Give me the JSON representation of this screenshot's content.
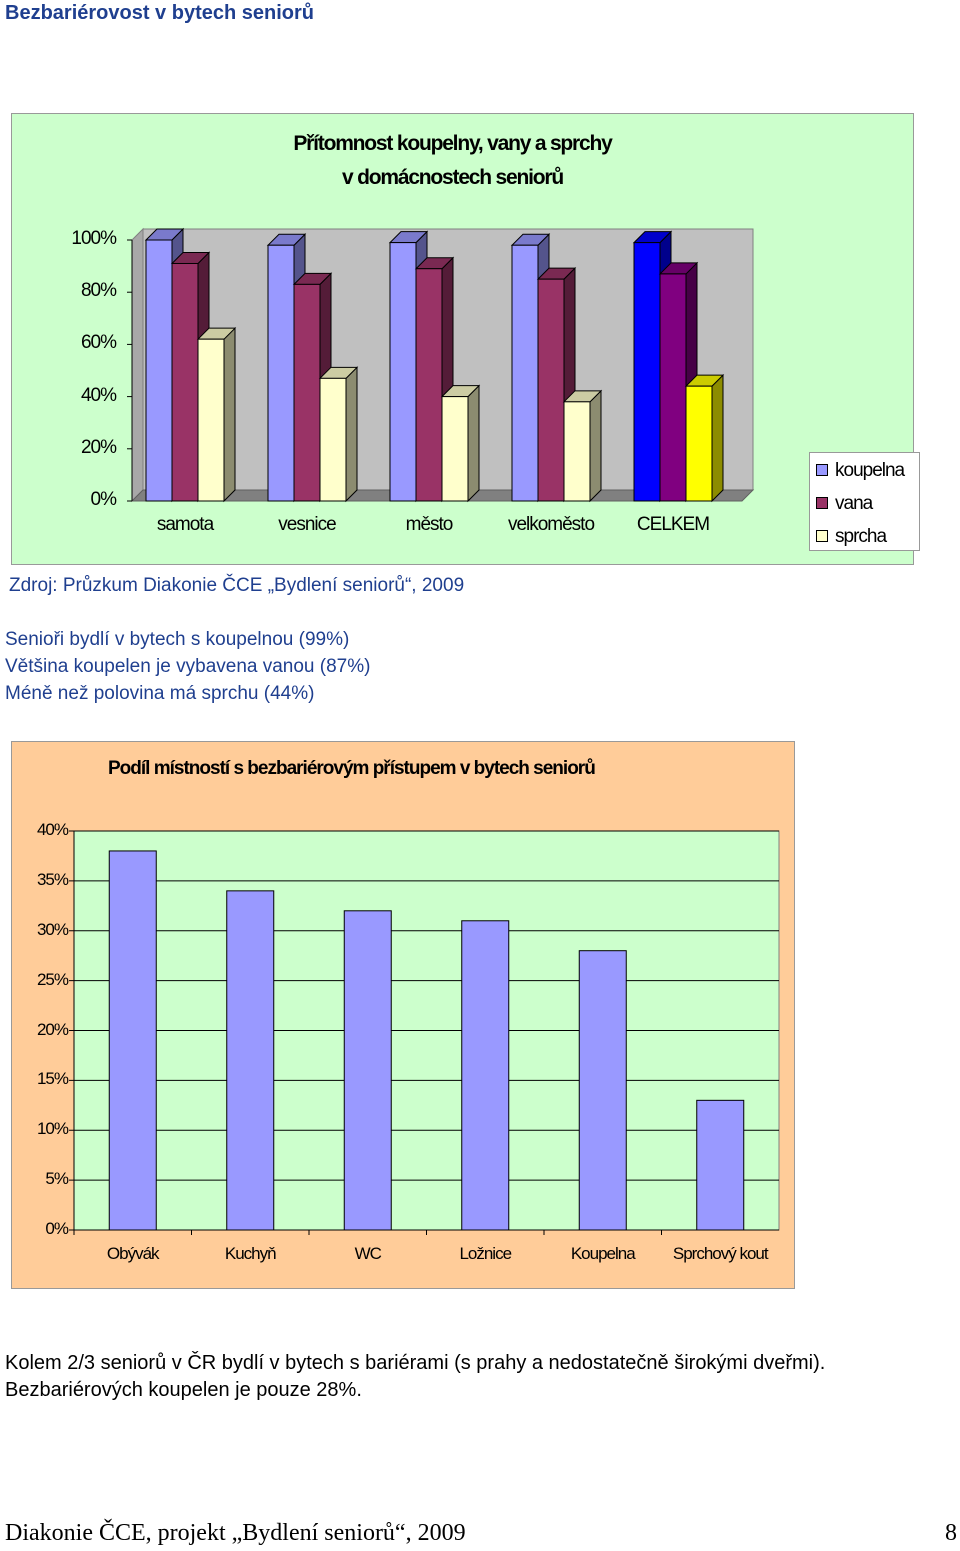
{
  "header": {
    "title": "Bezbariérovost v bytech seniorů"
  },
  "chart_data": [
    {
      "type": "bar",
      "title": "Přítomnost koupelny, vany a sprchy v domácnostech seniorů",
      "title_lines": [
        "Přítomnost koupelny, vany a sprchy",
        "v domácnostech seniorů"
      ],
      "categories": [
        "samota",
        "vesnice",
        "město",
        "velkoměsto",
        "CELKEM"
      ],
      "series": [
        {
          "name": "koupelna",
          "values": [
            1.0,
            0.98,
            0.99,
            0.98,
            0.99
          ],
          "color": "#9999ff"
        },
        {
          "name": "vana",
          "values": [
            0.91,
            0.83,
            0.89,
            0.85,
            0.87
          ],
          "color": "#993366"
        },
        {
          "name": "sprcha",
          "values": [
            0.62,
            0.47,
            0.4,
            0.38,
            0.44
          ],
          "color": "#ffffcc"
        }
      ],
      "highlight_colors": {
        "koupelna": "#0000ff",
        "vana": "#800080",
        "sprcha": "#ffff00"
      },
      "y_ticks": [
        "100%",
        "80%",
        "60%",
        "40%",
        "20%",
        "0%"
      ],
      "ylim": [
        0,
        1
      ],
      "legend_position": "right",
      "three_d": true,
      "plot_background": "#c0c0c0"
    },
    {
      "type": "bar",
      "title": "Podíl místností s bezbariérovým přístupem v bytech seniorů",
      "categories": [
        "Obývák",
        "Kuchyň",
        "WC",
        "Ložnice",
        "Koupelna",
        "Sprchový kout"
      ],
      "values": [
        0.38,
        0.34,
        0.32,
        0.31,
        0.28,
        0.13
      ],
      "y_ticks": [
        "40%",
        "35%",
        "30%",
        "25%",
        "20%",
        "15%",
        "10%",
        "5%",
        "0%"
      ],
      "ylim": [
        0,
        0.4
      ],
      "bar_color": "#9999ff",
      "plot_background": "#ccffcc",
      "chart_background": "#ffcc99",
      "grid": true
    }
  ],
  "source": "Zdroj: Průzkum Diakonie ČCE „Bydlení seniorů“, 2009",
  "findings": [
    "Senioři bydlí v bytech s koupelnou (99%)",
    "Většina koupelen je vybavena vanou (87%)",
    "Méně než polovina má sprchu (44%)"
  ],
  "conclusion": [
    "Kolem 2/3 seniorů v ČR bydlí v bytech s bariérami (s prahy a nedostatečně širokými dveřmi).",
    "Bezbariérových koupelen je pouze 28%."
  ],
  "footer": {
    "text": "Diakonie ČCE, projekt „Bydlení seniorů“, 2009",
    "page_number": "8"
  }
}
